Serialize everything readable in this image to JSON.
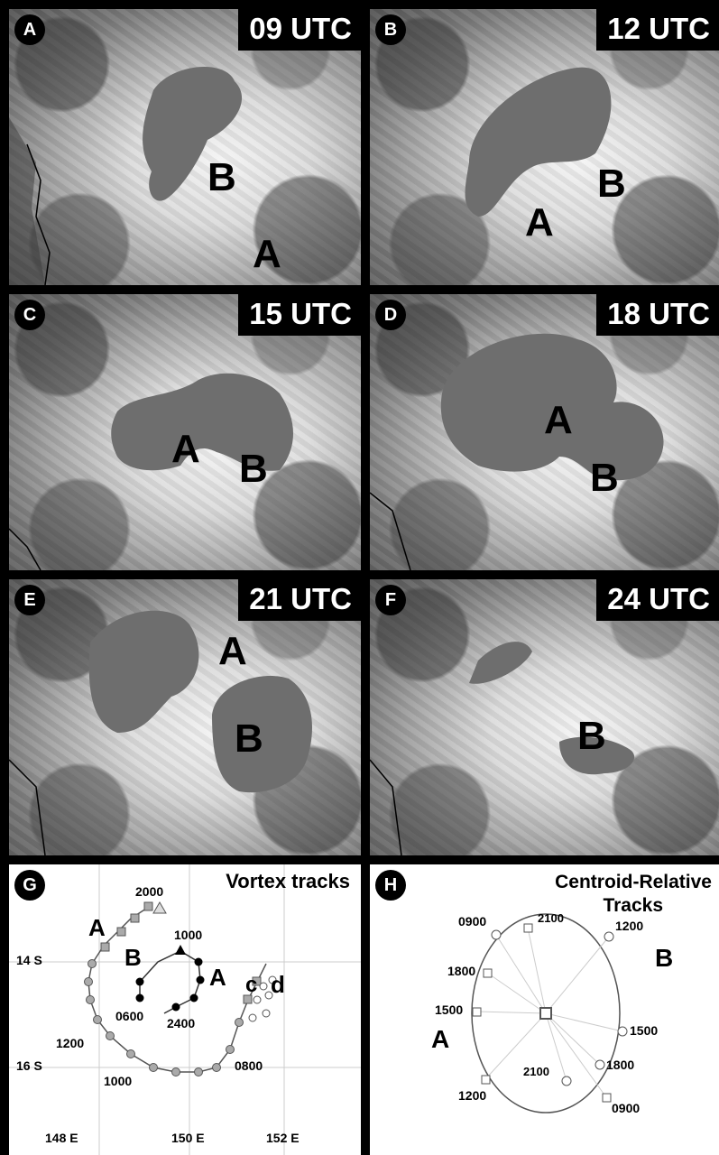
{
  "panels": [
    {
      "badge": "A",
      "time": "09 UTC",
      "vortices": [
        "B",
        "A"
      ]
    },
    {
      "badge": "B",
      "time": "12 UTC",
      "vortices": [
        "A",
        "B"
      ]
    },
    {
      "badge": "C",
      "time": "15 UTC",
      "vortices": [
        "A",
        "B"
      ]
    },
    {
      "badge": "D",
      "time": "18 UTC",
      "vortices": [
        "A",
        "B"
      ]
    },
    {
      "badge": "E",
      "time": "21 UTC",
      "vortices": [
        "A",
        "B"
      ]
    },
    {
      "badge": "F",
      "time": "24 UTC",
      "vortices": [
        "B"
      ]
    }
  ],
  "track_panel_g": {
    "badge": "G",
    "title": "Vortex tracks",
    "lat_labels": [
      "14 S",
      "16 S"
    ],
    "lon_labels": [
      "148 E",
      "150 E",
      "152 E"
    ],
    "vortex_labels": [
      "A",
      "B",
      "A",
      "c",
      "d"
    ],
    "time_labels": [
      "2000",
      "1000",
      "0600",
      "2400",
      "1200",
      "1000",
      "0800"
    ]
  },
  "track_panel_h": {
    "badge": "H",
    "title_line1": "Centroid-Relative",
    "title_line2": "Tracks",
    "vortex_labels": [
      "A",
      "B"
    ],
    "time_labels": [
      "0900",
      "2100",
      "1200",
      "1800",
      "1500",
      "1500",
      "1800",
      "2100",
      "1200",
      "0900"
    ]
  }
}
